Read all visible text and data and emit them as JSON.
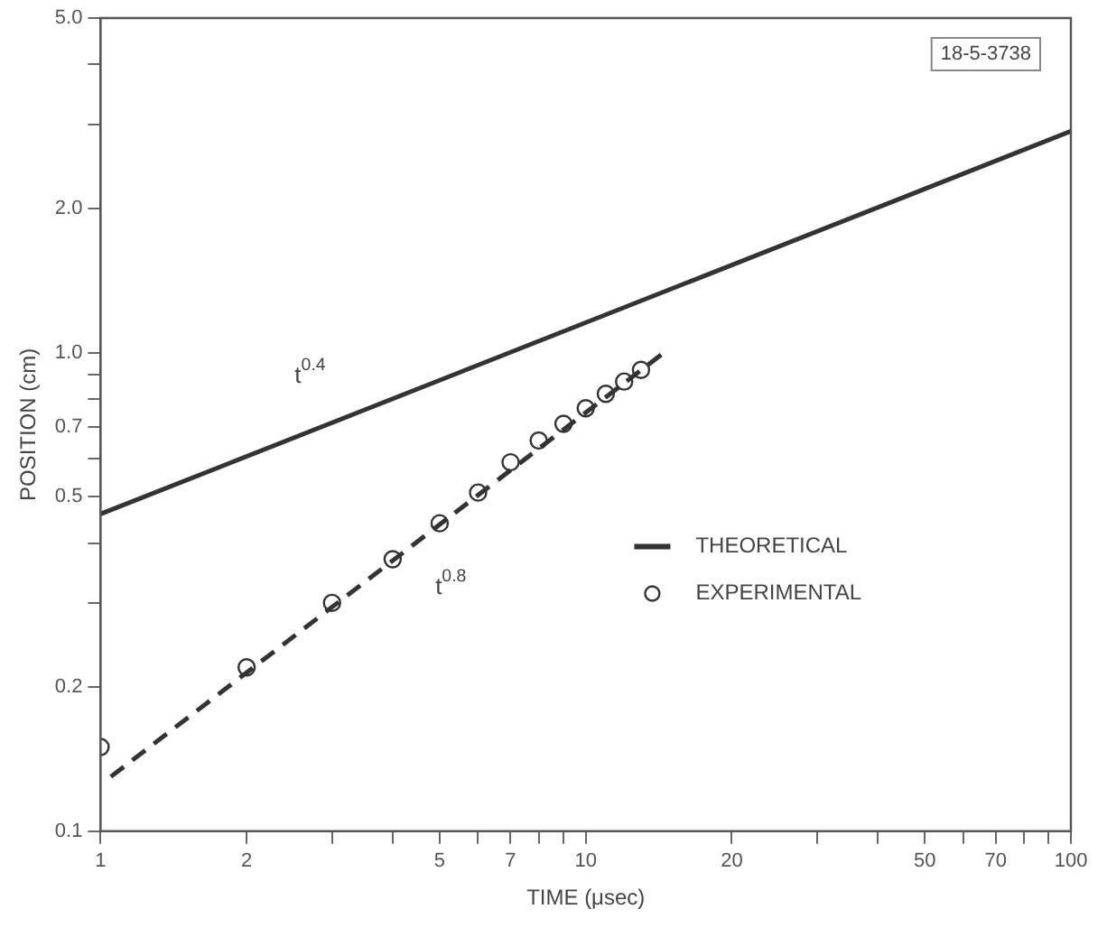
{
  "chart_data": {
    "type": "line",
    "xlabel": "TIME (μsec)",
    "ylabel": "POSITION (cm)",
    "log": "xy",
    "grid": false,
    "legend": "right",
    "xlim": [
      1,
      100
    ],
    "ylim": [
      0.1,
      5
    ],
    "xticks": [
      1,
      2,
      {
        "value": 3,
        "label": null
      },
      {
        "value": 4,
        "label": null
      },
      5,
      {
        "value": 6,
        "label": null
      },
      7,
      {
        "value": 8,
        "label": null
      },
      {
        "value": 9,
        "label": null
      },
      10,
      20,
      {
        "value": 30,
        "label": null
      },
      {
        "value": 40,
        "label": null
      },
      50,
      {
        "value": 60,
        "label": null
      },
      70,
      {
        "value": 80,
        "label": null
      },
      {
        "value": 90,
        "label": null
      },
      100
    ],
    "yticks": [
      0.1,
      0.2,
      {
        "value": 0.3,
        "label": null
      },
      {
        "value": 0.4,
        "label": null
      },
      0.5,
      {
        "value": 0.6,
        "label": null
      },
      0.7,
      {
        "value": 0.8,
        "label": null
      },
      {
        "value": 0.9,
        "label": null
      },
      {
        "value": 1,
        "label": "1.0"
      },
      {
        "value": 2,
        "label": "2.0"
      },
      {
        "value": 3,
        "label": null
      },
      {
        "value": 4,
        "label": null
      },
      {
        "value": 5,
        "label": "5.0"
      }
    ],
    "series": [
      {
        "name": "THEORETICAL",
        "type": "line",
        "color": "#333333",
        "line_style": "solid",
        "marker": "none",
        "x": [
          1,
          100
        ],
        "values": [
          0.46,
          2.9
        ]
      },
      {
        "type": "line",
        "color": "#333333",
        "line_style": "dashed",
        "marker": "none",
        "x": [
          1.05,
          14.5
        ],
        "values": [
          0.13,
          1.0
        ]
      },
      {
        "name": "EXPERIMENTAL",
        "type": "scatter",
        "color": "#333333",
        "marker": "circle",
        "x": [
          1,
          2,
          3,
          4,
          5,
          6,
          7,
          8,
          9,
          10,
          11,
          12,
          13
        ],
        "values": [
          0.15,
          0.22,
          0.3,
          0.37,
          0.44,
          0.51,
          0.59,
          0.655,
          0.71,
          0.765,
          0.82,
          0.87,
          0.92
        ]
      }
    ],
    "annotations": [
      "t$^{0.4}$",
      "t$^{0.8}$",
      "18-5-3738"
    ]
  }
}
